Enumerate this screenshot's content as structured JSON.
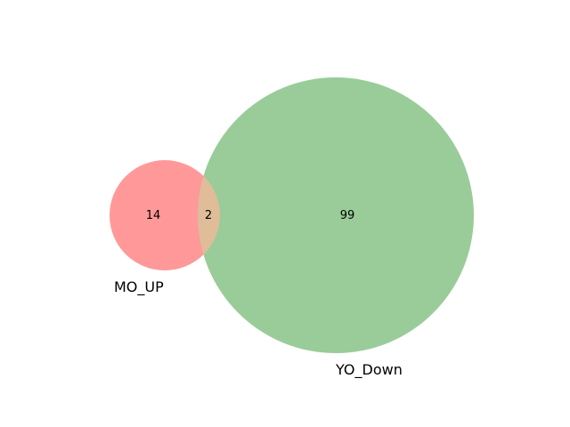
{
  "venn": {
    "sets": [
      {
        "name": "MO_UP",
        "color": "#ff9999"
      },
      {
        "name": "YO_Down",
        "color": "#99cc99"
      }
    ],
    "intersection_color": "#e0bc99",
    "counts": {
      "only_a": "14",
      "a_and_b": "2",
      "only_b": "99"
    }
  }
}
